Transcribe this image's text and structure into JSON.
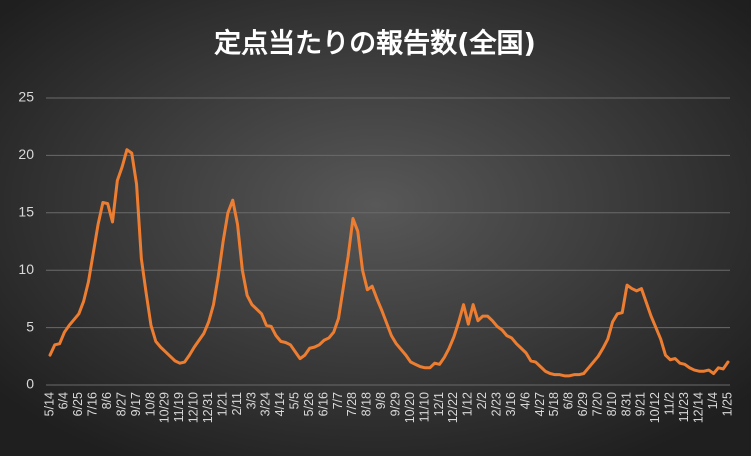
{
  "chart_data": {
    "type": "line",
    "title": "定点当たりの報告数(全国)",
    "categories": [
      "5/14",
      null,
      null,
      "6/4",
      null,
      null,
      "6/25",
      null,
      null,
      "7/16",
      null,
      null,
      "8/6",
      null,
      null,
      "8/27",
      null,
      null,
      "9/17",
      null,
      null,
      "10/8",
      null,
      null,
      "10/29",
      null,
      null,
      "11/19",
      null,
      null,
      "12/10",
      null,
      null,
      "12/31",
      null,
      null,
      "1/21",
      null,
      null,
      "2/11",
      null,
      null,
      "3/3",
      null,
      null,
      "3/24",
      null,
      null,
      "4/14",
      null,
      null,
      "5/5",
      null,
      null,
      "5/26",
      null,
      null,
      "6/16",
      null,
      null,
      "7/7",
      null,
      null,
      "7/28",
      null,
      null,
      "8/18",
      null,
      null,
      "9/8",
      null,
      null,
      "9/29",
      null,
      null,
      "10/20",
      null,
      null,
      "11/10",
      null,
      null,
      "12/1",
      null,
      null,
      "12/22",
      null,
      null,
      "1/12",
      null,
      null,
      "2/2",
      null,
      null,
      "2/23",
      null,
      null,
      "3/16",
      null,
      null,
      "4/6",
      null,
      null,
      "4/27",
      null,
      null,
      "5/18",
      null,
      null,
      "6/8",
      null,
      null,
      "6/29",
      null,
      null,
      "7/20",
      null,
      null,
      "8/10",
      null,
      null,
      "8/31",
      null,
      null,
      "9/21",
      null,
      null,
      "10/12",
      null,
      null,
      "11/2",
      null,
      null,
      "11/23",
      null,
      null,
      "12/14",
      null,
      null,
      "1/4",
      null,
      null,
      "1/25"
    ],
    "values": [
      2.6,
      3.5,
      3.6,
      4.6,
      5.2,
      5.7,
      6.2,
      7.3,
      9.0,
      11.5,
      14.0,
      15.9,
      15.8,
      14.2,
      17.8,
      19.0,
      20.5,
      20.2,
      17.5,
      11.0,
      8.0,
      5.2,
      3.8,
      3.3,
      2.9,
      2.5,
      2.1,
      1.9,
      2.0,
      2.6,
      3.3,
      3.9,
      4.5,
      5.5,
      7.0,
      9.5,
      12.5,
      15.0,
      16.1,
      14.0,
      10.0,
      7.8,
      7.0,
      6.6,
      6.2,
      5.2,
      5.1,
      4.3,
      3.8,
      3.7,
      3.5,
      2.9,
      2.3,
      2.6,
      3.2,
      3.3,
      3.5,
      3.9,
      4.1,
      4.6,
      5.8,
      8.5,
      11.2,
      14.5,
      13.4,
      10.0,
      8.3,
      8.6,
      7.5,
      6.5,
      5.4,
      4.3,
      3.6,
      3.1,
      2.6,
      2.0,
      1.8,
      1.6,
      1.5,
      1.5,
      1.9,
      1.8,
      2.4,
      3.2,
      4.2,
      5.5,
      7.0,
      5.3,
      7.0,
      5.6,
      6.0,
      6.0,
      5.6,
      5.1,
      4.8,
      4.3,
      4.1,
      3.6,
      3.2,
      2.8,
      2.1,
      2.0,
      1.6,
      1.2,
      1.0,
      0.9,
      0.9,
      0.8,
      0.8,
      0.9,
      0.9,
      1.0,
      1.5,
      2.0,
      2.5,
      3.2,
      4.0,
      5.5,
      6.2,
      6.3,
      8.7,
      8.4,
      8.2,
      8.4,
      7.2,
      6.0,
      5.0,
      4.0,
      2.6,
      2.2,
      2.3,
      1.9,
      1.8,
      1.5,
      1.3,
      1.2,
      1.2,
      1.3,
      1.0,
      1.5,
      1.4,
      2.0
    ],
    "color": "#ed7d31",
    "ylim": [
      0,
      25
    ],
    "yticks": [
      0,
      5,
      10,
      15,
      20,
      25
    ],
    "grid": true
  }
}
